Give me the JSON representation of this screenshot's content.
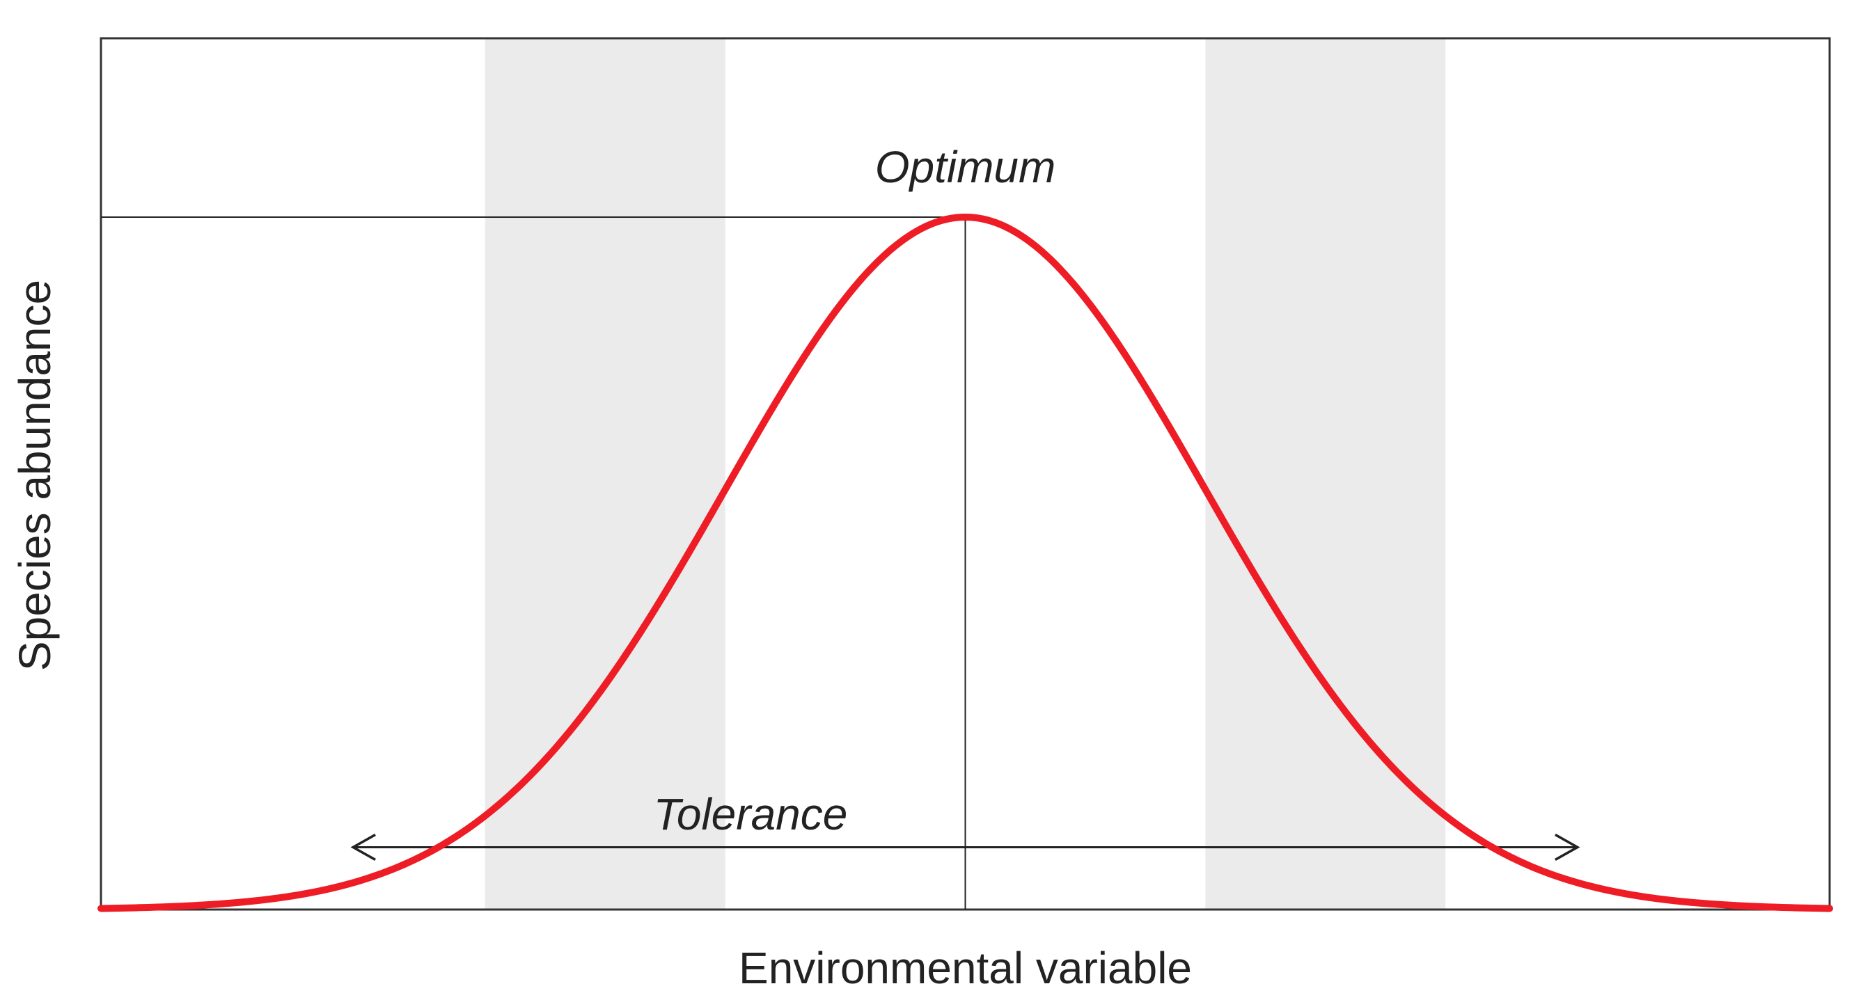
{
  "chart_data": {
    "type": "line",
    "title": "",
    "xlabel": "Environmental variable",
    "ylabel": "Species abundance",
    "xlim": [
      -3.6,
      3.6
    ],
    "ylim": [
      0,
      1.0
    ],
    "grid": false,
    "series": [
      {
        "name": "Species response curve",
        "color": "#ee1c25",
        "curve": "gaussian",
        "mean": 0,
        "sd": 1,
        "peak": 1.0
      }
    ],
    "shaded_bands": [
      {
        "name": "left-band",
        "x_range": [
          -2.0,
          -1.0
        ],
        "color": "#ebebeb"
      },
      {
        "name": "right-band",
        "x_range": [
          1.0,
          2.0
        ],
        "color": "#ebebeb"
      }
    ],
    "annotations": {
      "optimum": {
        "text": "Optimum",
        "x": 0,
        "y": 1.0
      },
      "tolerance": {
        "text": "Tolerance",
        "x_range": [
          -2.55,
          2.55
        ],
        "y": 0.09
      }
    }
  }
}
